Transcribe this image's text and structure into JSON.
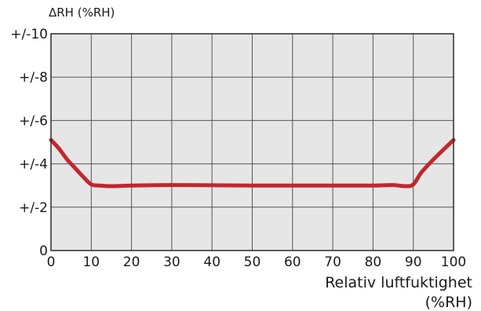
{
  "chart_data": {
    "type": "line",
    "title": "",
    "ylabel": "ΔRH (%RH)",
    "xlabel_line1": "Relativ luftfuktighet",
    "xlabel_line2": "(%RH)",
    "x_ticks": [
      0,
      10,
      20,
      30,
      40,
      50,
      60,
      70,
      80,
      90,
      100
    ],
    "y_ticks": [
      0,
      2,
      4,
      6,
      8,
      10
    ],
    "y_tick_labels": [
      "0",
      "+/-2",
      "+/-4",
      "+/-6",
      "+/-8",
      "+/-10"
    ],
    "xlim": [
      0,
      100
    ],
    "ylim": [
      0,
      10
    ],
    "grid": true,
    "line_color": "#c1272d",
    "background_color": "#e6e6e6",
    "series": [
      {
        "x": [
          0,
          2,
          4,
          6,
          8,
          10,
          12,
          15,
          20,
          30,
          40,
          50,
          60,
          70,
          80,
          85,
          88,
          90,
          92,
          95,
          100
        ],
        "y": [
          5.1,
          4.7,
          4.2,
          3.8,
          3.4,
          3.05,
          3.0,
          2.97,
          3.0,
          3.02,
          3.01,
          3.0,
          3.0,
          3.0,
          3.0,
          3.02,
          2.97,
          3.05,
          3.6,
          4.2,
          5.1
        ]
      }
    ]
  }
}
